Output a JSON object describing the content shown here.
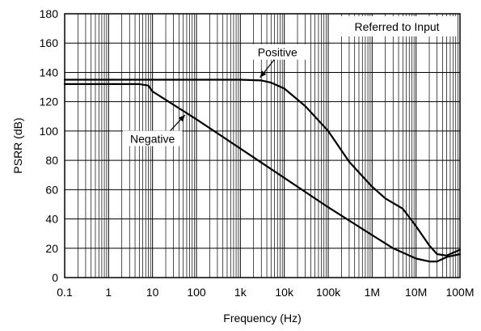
{
  "chart_data": {
    "type": "line",
    "title": "",
    "xlabel": "Frequency (Hz)",
    "ylabel": "PSRR (dB)",
    "x_scale": "log",
    "xlim": [
      0.1,
      100000000
    ],
    "ylim": [
      0,
      180
    ],
    "grid": true,
    "x_ticks": [
      0.1,
      1,
      10,
      100,
      1000,
      10000,
      100000,
      1000000,
      10000000,
      100000000
    ],
    "x_tick_labels": [
      "0.1",
      "1",
      "10",
      "100",
      "1k",
      "10k",
      "100k",
      "1M",
      "10M",
      "100M"
    ],
    "y_ticks": [
      0,
      20,
      40,
      60,
      80,
      100,
      120,
      140,
      160,
      180
    ],
    "y_tick_labels": [
      "0",
      "20",
      "40",
      "60",
      "80",
      "100",
      "120",
      "140",
      "160",
      "180"
    ],
    "annotation_box": "Referred to Input",
    "series": [
      {
        "name": "Positive",
        "label_at": [
          7000,
          152
        ],
        "points": [
          [
            0.1,
            135
          ],
          [
            100,
            135
          ],
          [
            1000,
            135
          ],
          [
            3000,
            134.5
          ],
          [
            5000,
            133
          ],
          [
            10000,
            129
          ],
          [
            30000,
            117
          ],
          [
            100000,
            100
          ],
          [
            300000,
            79
          ],
          [
            1000000,
            62
          ],
          [
            2000000,
            54
          ],
          [
            5000000,
            47
          ],
          [
            10000000,
            35
          ],
          [
            20000000,
            22
          ],
          [
            30000000,
            16
          ],
          [
            50000000,
            15
          ],
          [
            100000000,
            19
          ]
        ]
      },
      {
        "name": "Negative",
        "label_at": [
          10,
          93
        ],
        "points": [
          [
            0.1,
            132
          ],
          [
            1,
            132
          ],
          [
            5,
            132
          ],
          [
            8,
            131
          ],
          [
            10,
            127
          ],
          [
            100,
            108
          ],
          [
            1000,
            88
          ],
          [
            10000,
            68
          ],
          [
            100000,
            48
          ],
          [
            1000000,
            29
          ],
          [
            3000000,
            20
          ],
          [
            10000000,
            13
          ],
          [
            20000000,
            11
          ],
          [
            30000000,
            11
          ],
          [
            50000000,
            14
          ],
          [
            100000000,
            16
          ]
        ]
      }
    ]
  }
}
